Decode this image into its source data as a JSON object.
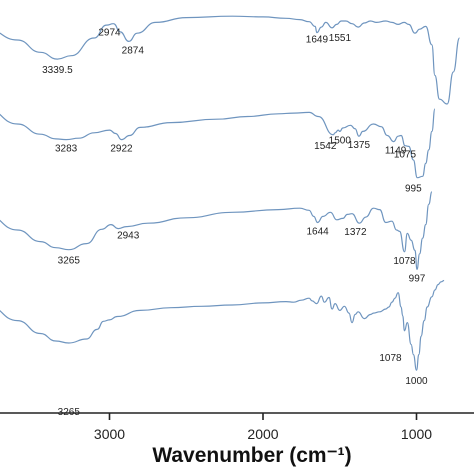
{
  "chart_data": {
    "type": "line",
    "title": "",
    "xlabel": "Wavenumber (cm⁻¹)",
    "ylabel": "",
    "x_reversed": true,
    "xlim": [
      3950,
      600
    ],
    "x_ticks": [
      {
        "value": 3000,
        "label": "3000"
      },
      {
        "value": 2000,
        "label": "2000"
      },
      {
        "value": 1000,
        "label": "1000"
      }
    ],
    "grid": false,
    "legend": "none",
    "series": [
      {
        "x": [
          3950,
          3800,
          3600,
          3450,
          3339.5,
          3250,
          3100,
          3020,
          2974,
          2930,
          2874,
          2820,
          2700,
          2500,
          2200,
          2000,
          1850,
          1760,
          1700,
          1660,
          1649,
          1620,
          1590,
          1551,
          1520,
          1490,
          1460,
          1420,
          1380,
          1340,
          1300,
          1260,
          1200,
          1160,
          1120,
          1080,
          1050,
          1010,
          980,
          940,
          900,
          880,
          850,
          800,
          760,
          720
        ],
        "y": [
          -0.5,
          -1.2,
          -2.8,
          -4.6,
          -5.6,
          -5.1,
          -2.5,
          -0.6,
          -0.4,
          -1.6,
          -3.0,
          -1.8,
          -0.2,
          0.5,
          0.7,
          0.6,
          0.4,
          0.2,
          -0.1,
          -0.8,
          -1.7,
          -0.9,
          -0.2,
          -1.0,
          -0.5,
          0.0,
          0.0,
          -0.4,
          -0.9,
          -0.3,
          0.0,
          -0.2,
          0.0,
          -0.2,
          -0.5,
          -0.2,
          -0.5,
          -1.8,
          -1.2,
          -0.8,
          -3.5,
          -8.0,
          -11.5,
          -12.2,
          -7.5,
          -2.5
        ]
      },
      {
        "x": [
          3950,
          3800,
          3600,
          3450,
          3350,
          3283,
          3200,
          3100,
          3000,
          2960,
          2922,
          2870,
          2800,
          2600,
          2300,
          2100,
          1900,
          1800,
          1700,
          1640,
          1542,
          1530,
          1510,
          1500,
          1480,
          1430,
          1400,
          1375,
          1350,
          1280,
          1230,
          1190,
          1149,
          1120,
          1100,
          1075,
          1050,
          1020,
          995,
          960,
          940,
          920,
          900,
          880
        ],
        "y": [
          -1.0,
          -2.5,
          -4.7,
          -6.2,
          -6.9,
          -7.0,
          -6.8,
          -6.0,
          -5.6,
          -6.1,
          -7.0,
          -6.4,
          -5.2,
          -4.5,
          -4.0,
          -3.6,
          -3.2,
          -3.1,
          -3.0,
          -3.6,
          -6.3,
          -6.0,
          -5.6,
          -5.8,
          -5.3,
          -4.9,
          -5.4,
          -6.5,
          -5.8,
          -4.7,
          -5.1,
          -6.4,
          -7.3,
          -6.5,
          -6.4,
          -7.9,
          -8.0,
          -10.0,
          -12.6,
          -12.4,
          -10.5,
          -8.5,
          -5.8,
          -2.5
        ]
      },
      {
        "x": [
          3950,
          3800,
          3600,
          3450,
          3350,
          3265,
          3150,
          3050,
          2990,
          2943,
          2890,
          2750,
          2500,
          2200,
          1900,
          1760,
          1700,
          1670,
          1644,
          1610,
          1560,
          1520,
          1480,
          1450,
          1420,
          1372,
          1330,
          1280,
          1240,
          1200,
          1160,
          1130,
          1110,
          1078,
          1060,
          1035,
          1010,
          997,
          980,
          960,
          940,
          920,
          900
        ],
        "y": [
          -1.2,
          -2.8,
          -5.0,
          -6.7,
          -7.6,
          -7.9,
          -7.0,
          -4.9,
          -4.2,
          -4.8,
          -4.5,
          -4.0,
          -3.2,
          -2.4,
          -2.0,
          -1.8,
          -2.1,
          -3.0,
          -3.9,
          -3.0,
          -2.4,
          -3.5,
          -3.3,
          -2.7,
          -2.6,
          -4.0,
          -3.1,
          -1.8,
          -2.0,
          -3.9,
          -3.7,
          -5.0,
          -5.2,
          -8.2,
          -5.5,
          -6.5,
          -8.0,
          -10.8,
          -8.5,
          -6.2,
          -4.2,
          -1.2,
          0.6
        ]
      },
      {
        "x": [
          3950,
          3800,
          3600,
          3450,
          3350,
          3265,
          3150,
          3080,
          3040,
          3000,
          2950,
          2800,
          2600,
          2400,
          2200,
          2000,
          1850,
          1800,
          1750,
          1700,
          1680,
          1650,
          1620,
          1600,
          1570,
          1550,
          1530,
          1500,
          1470,
          1440,
          1420,
          1400,
          1380,
          1340,
          1300,
          1280,
          1240,
          1200,
          1180,
          1160,
          1140,
          1120,
          1100,
          1090,
          1078,
          1060,
          1035,
          1020,
          1000,
          985,
          970,
          950,
          930,
          900,
          880,
          860,
          840,
          820
        ],
        "y": [
          -0.8,
          -2.2,
          -4.5,
          -6.4,
          -7.5,
          -7.8,
          -7.2,
          -5.8,
          -4.6,
          -4.4,
          -3.9,
          -3.0,
          -2.6,
          -2.4,
          -2.2,
          -1.9,
          -1.7,
          -1.8,
          -1.5,
          -1.2,
          -1.6,
          -2.0,
          -0.9,
          -1.8,
          -1.1,
          -2.8,
          -2.0,
          -3.0,
          -2.4,
          -3.4,
          -4.8,
          -3.6,
          -3.2,
          -4.2,
          -3.6,
          -3.4,
          -3.2,
          -2.8,
          -2.5,
          -1.8,
          -1.2,
          -0.4,
          -2.5,
          -3.8,
          -6.0,
          -4.8,
          -8.0,
          -9.5,
          -11.8,
          -9.5,
          -6.8,
          -4.5,
          -2.5,
          -1.0,
          0.0,
          0.8,
          1.2,
          1.4
        ]
      }
    ],
    "peak_labels": [
      {
        "series": 0,
        "text": "3339.5",
        "x": 3339.5
      },
      {
        "series": 0,
        "text": "2974",
        "x": 2974
      },
      {
        "series": 0,
        "text": "2874",
        "x": 2874
      },
      {
        "series": 0,
        "text": "1649",
        "x": 1649
      },
      {
        "series": 0,
        "text": "1551",
        "x": 1551
      },
      {
        "series": 1,
        "text": "3283",
        "x": 3283
      },
      {
        "series": 1,
        "text": "2922",
        "x": 2922
      },
      {
        "series": 1,
        "text": "1542",
        "x": 1542
      },
      {
        "series": 1,
        "text": "1500",
        "x": 1500
      },
      {
        "series": 1,
        "text": "1375",
        "x": 1375
      },
      {
        "series": 1,
        "text": "1149",
        "x": 1149
      },
      {
        "series": 1,
        "text": "1075",
        "x": 1075
      },
      {
        "series": 1,
        "text": "995",
        "x": 995
      },
      {
        "series": 2,
        "text": "3265",
        "x": 3265
      },
      {
        "series": 2,
        "text": "2943",
        "x": 2943
      },
      {
        "series": 2,
        "text": "1644",
        "x": 1644
      },
      {
        "series": 2,
        "text": "1372",
        "x": 1372
      },
      {
        "series": 2,
        "text": "1078",
        "x": 1078
      },
      {
        "series": 2,
        "text": "997",
        "x": 997
      },
      {
        "series": 3,
        "text": "3265",
        "x": 3265
      },
      {
        "series": 3,
        "text": "1078",
        "x": 1078
      },
      {
        "series": 3,
        "text": "1000",
        "x": 1000
      }
    ],
    "colors": {
      "line": "#6f95bf",
      "axis": "#222222",
      "text": "#111111"
    }
  }
}
